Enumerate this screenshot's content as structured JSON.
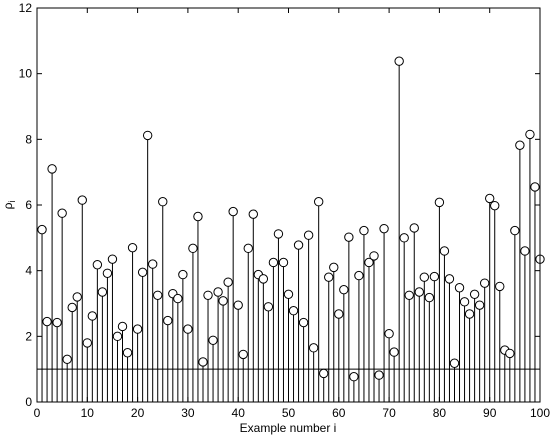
{
  "chart_data": {
    "type": "scatter",
    "style": "stem",
    "title": "",
    "xlabel": "Example number i",
    "ylabel": "ρi",
    "ylabel_main": "ρ",
    "ylabel_sub": "i",
    "xlim": [
      0,
      100
    ],
    "ylim": [
      0,
      12
    ],
    "xticks": [
      0,
      10,
      20,
      30,
      40,
      50,
      60,
      70,
      80,
      90,
      100
    ],
    "yticks": [
      0,
      2,
      4,
      6,
      8,
      10,
      12
    ],
    "grid": false,
    "reference_line_y": 1,
    "series": [
      {
        "marker": "open-circle",
        "color": "#000000",
        "x": [
          1,
          2,
          3,
          4,
          5,
          6,
          7,
          8,
          9,
          10,
          11,
          12,
          13,
          14,
          15,
          16,
          17,
          18,
          19,
          20,
          21,
          22,
          23,
          24,
          25,
          26,
          27,
          28,
          29,
          30,
          31,
          32,
          33,
          34,
          35,
          36,
          37,
          38,
          39,
          40,
          41,
          42,
          43,
          44,
          45,
          46,
          47,
          48,
          49,
          50,
          51,
          52,
          53,
          54,
          55,
          56,
          57,
          58,
          59,
          60,
          61,
          62,
          63,
          64,
          65,
          66,
          67,
          68,
          69,
          70,
          71,
          72,
          73,
          74,
          75,
          76,
          77,
          78,
          79,
          80,
          81,
          82,
          83,
          84,
          85,
          86,
          87,
          88,
          89,
          90,
          91,
          92,
          93,
          94,
          95,
          96,
          97,
          98,
          99,
          100
        ],
        "values": [
          5.25,
          2.45,
          7.1,
          2.42,
          5.75,
          1.3,
          2.88,
          3.2,
          6.15,
          1.8,
          2.62,
          4.18,
          3.35,
          3.92,
          4.35,
          2.0,
          2.3,
          1.5,
          4.7,
          2.22,
          3.95,
          8.12,
          4.2,
          3.25,
          6.1,
          2.48,
          3.3,
          3.15,
          3.88,
          2.22,
          4.68,
          5.65,
          1.22,
          3.25,
          1.88,
          3.35,
          3.08,
          3.65,
          5.8,
          2.95,
          1.45,
          4.68,
          5.72,
          3.88,
          3.75,
          2.9,
          4.25,
          5.12,
          4.25,
          3.28,
          2.78,
          4.78,
          2.42,
          5.08,
          1.65,
          6.1,
          0.87,
          3.8,
          4.1,
          2.68,
          3.42,
          5.02,
          0.77,
          3.85,
          5.22,
          4.25,
          4.45,
          0.82,
          5.28,
          2.08,
          1.52,
          10.38,
          5.0,
          3.25,
          5.3,
          3.35,
          3.8,
          3.18,
          3.82,
          6.08,
          4.6,
          3.75,
          1.18,
          3.48,
          3.05,
          2.68,
          3.28,
          2.95,
          3.62,
          6.2,
          5.98,
          3.52,
          1.58,
          1.48,
          5.22,
          7.82,
          4.6,
          8.15,
          6.55,
          4.35
        ]
      }
    ]
  }
}
